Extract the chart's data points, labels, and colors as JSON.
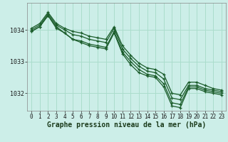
{
  "background_color": "#cceee8",
  "grid_color": "#aaddcc",
  "line_color": "#1a5c2a",
  "xlabel": "Graphe pression niveau de la mer (hPa)",
  "xlabel_fontsize": 7,
  "yticks": [
    1032,
    1033,
    1034
  ],
  "xlim": [
    -0.5,
    23.5
  ],
  "ylim": [
    1031.45,
    1034.85
  ],
  "series": [
    [
      1034.05,
      1034.2,
      1034.55,
      1034.2,
      1034.05,
      1033.95,
      1033.9,
      1033.8,
      1033.75,
      1033.7,
      1034.1,
      1033.5,
      1033.2,
      1032.95,
      1032.8,
      1032.75,
      1032.6,
      1032.0,
      1031.95,
      1032.35,
      1032.35,
      1032.25,
      1032.15,
      1032.1
    ],
    [
      1034.0,
      1034.15,
      1034.5,
      1034.15,
      1034.0,
      1033.85,
      1033.8,
      1033.7,
      1033.65,
      1033.6,
      1034.05,
      1033.4,
      1033.1,
      1032.85,
      1032.7,
      1032.65,
      1032.45,
      1031.85,
      1031.8,
      1032.25,
      1032.25,
      1032.15,
      1032.1,
      1032.05
    ],
    [
      1033.95,
      1034.1,
      1034.45,
      1034.1,
      1033.9,
      1033.7,
      1033.65,
      1033.55,
      1033.5,
      1033.45,
      1033.95,
      1033.3,
      1033.0,
      1032.75,
      1032.6,
      1032.55,
      1032.3,
      1031.7,
      1031.65,
      1032.2,
      1032.2,
      1032.1,
      1032.05,
      1032.0
    ],
    [
      1033.95,
      1034.1,
      1034.45,
      1034.05,
      1033.9,
      1033.7,
      1033.6,
      1033.5,
      1033.45,
      1033.4,
      1033.9,
      1033.25,
      1032.9,
      1032.65,
      1032.55,
      1032.5,
      1032.2,
      1031.6,
      1031.55,
      1032.15,
      1032.15,
      1032.05,
      1032.0,
      1031.95
    ]
  ]
}
